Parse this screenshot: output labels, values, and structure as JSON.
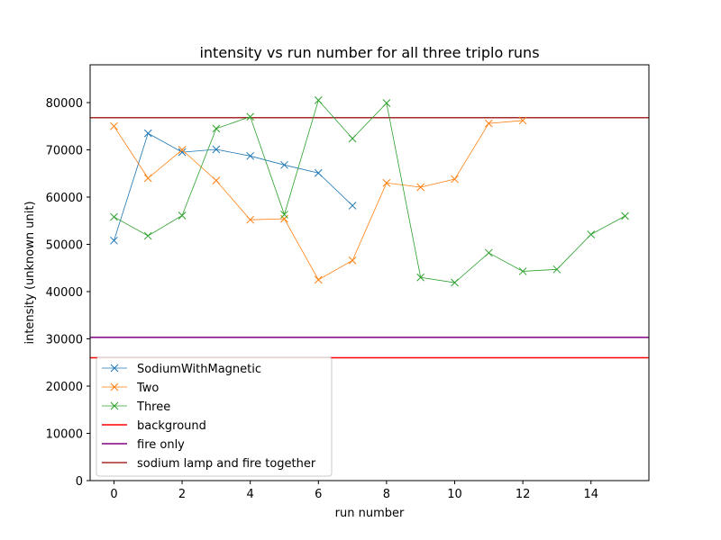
{
  "chart_data": {
    "type": "line",
    "title": "intensity vs run number for all three triplo runs",
    "xlabel": "run number",
    "ylabel": "intensity (unknown unit)",
    "xlim": [
      -0.7,
      15.7
    ],
    "ylim": [
      0,
      88000
    ],
    "xticks": [
      0,
      2,
      4,
      6,
      8,
      10,
      12,
      14
    ],
    "yticks": [
      0,
      10000,
      20000,
      30000,
      40000,
      50000,
      60000,
      70000,
      80000
    ],
    "grid": false,
    "legend_position": "lower-left",
    "series": [
      {
        "name": "SodiumWithMagnetic",
        "color": "#1f77b4",
        "marker": "x",
        "x": [
          0,
          1,
          2,
          3,
          4,
          5,
          6,
          7
        ],
        "values": [
          50800,
          73500,
          69500,
          70100,
          68700,
          66800,
          65100,
          58200
        ]
      },
      {
        "name": "Two",
        "color": "#ff7f0e",
        "marker": "x",
        "x": [
          0,
          1,
          2,
          3,
          4,
          5,
          6,
          7,
          8,
          9,
          10,
          11,
          12
        ],
        "values": [
          75000,
          64000,
          70000,
          63500,
          55200,
          55400,
          42500,
          46600,
          63000,
          62100,
          63800,
          75600,
          76200
        ]
      },
      {
        "name": "Three",
        "color": "#2ca02c",
        "marker": "x",
        "x": [
          0,
          1,
          2,
          3,
          4,
          5,
          6,
          7,
          8,
          9,
          10,
          11,
          12,
          13,
          14,
          15
        ],
        "values": [
          55800,
          51800,
          56100,
          74500,
          77000,
          56300,
          80500,
          72400,
          79900,
          43000,
          41900,
          48200,
          44300,
          44700,
          52100,
          56000
        ]
      }
    ],
    "hlines": [
      {
        "name": "background",
        "color": "#ff0000",
        "value": 26000
      },
      {
        "name": "fire only",
        "color": "#800080",
        "value": 30300
      },
      {
        "name": "sodium lamp and fire together",
        "color": "#a52a2a",
        "value": 76800
      }
    ]
  }
}
